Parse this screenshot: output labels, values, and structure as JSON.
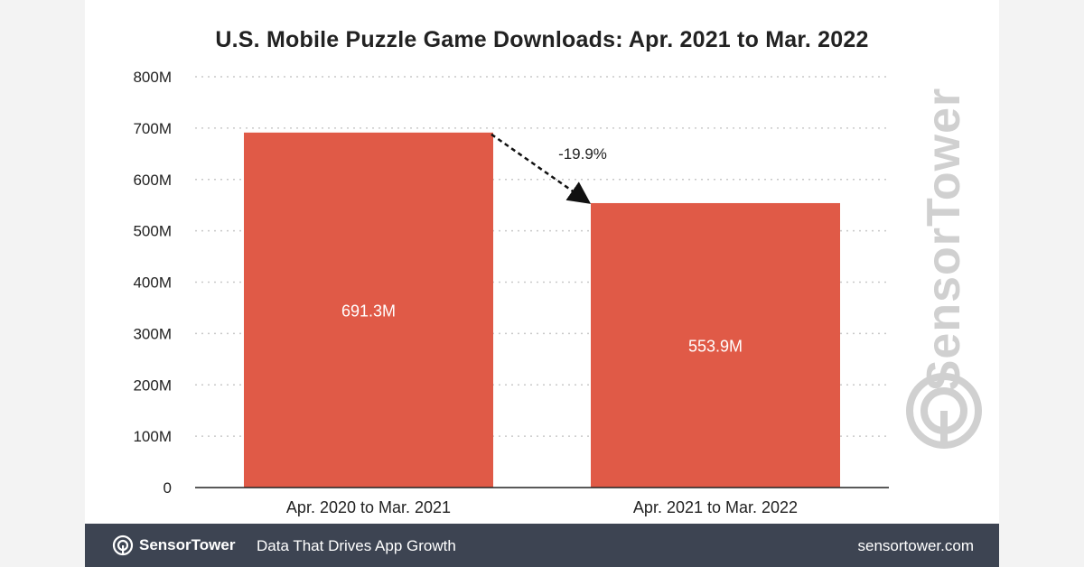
{
  "chart_data": {
    "type": "bar",
    "title": "U.S. Mobile Puzzle Game Downloads: Apr. 2021 to Mar. 2022",
    "categories": [
      "Apr. 2020 to Mar. 2021",
      "Apr. 2021 to Mar. 2022"
    ],
    "values": [
      691.3,
      553.9
    ],
    "data_labels": [
      "691.3M",
      "553.9M"
    ],
    "ylim": [
      0,
      800
    ],
    "yticks": [
      0,
      100,
      200,
      300,
      400,
      500,
      600,
      700,
      800
    ],
    "ytick_labels": [
      "0",
      "100M",
      "200M",
      "300M",
      "400M",
      "500M",
      "600M",
      "700M",
      "800M"
    ],
    "xlabel": "",
    "ylabel": "",
    "grid": true,
    "bar_color": "#e05a47",
    "annotation": {
      "text": "-19.9%",
      "from": 0,
      "to": 1
    }
  },
  "watermark": {
    "text": "SensorTower",
    "icon": "sensor-tower-logo-icon"
  },
  "footer": {
    "brand": "SensorTower",
    "brand_icon": "sensor-tower-logo-icon",
    "tagline": "Data That Drives App Growth",
    "site": "sensortower.com",
    "background": "#3d4452"
  }
}
